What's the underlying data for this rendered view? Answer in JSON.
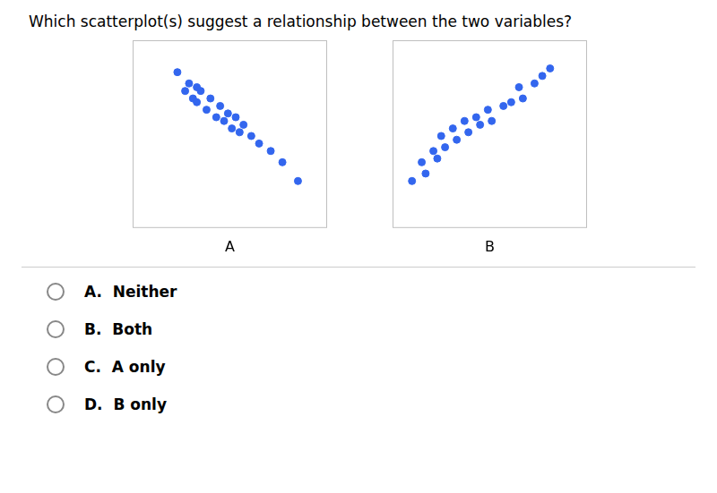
{
  "chart_data": [
    {
      "type": "scatter",
      "title": "Which scatterplot(s) suggest a relationship between the two variables?",
      "xlabel": "A",
      "x": [
        0.18,
        0.24,
        0.22,
        0.28,
        0.26,
        0.3,
        0.28,
        0.35,
        0.33,
        0.4,
        0.38,
        0.44,
        0.42,
        0.48,
        0.46,
        0.52,
        0.5,
        0.56,
        0.6,
        0.66,
        0.72,
        0.8
      ],
      "y": [
        0.78,
        0.72,
        0.68,
        0.7,
        0.64,
        0.68,
        0.62,
        0.64,
        0.58,
        0.6,
        0.54,
        0.56,
        0.52,
        0.54,
        0.48,
        0.5,
        0.46,
        0.44,
        0.4,
        0.36,
        0.3,
        0.2
      ],
      "color": "#3366EE",
      "marker": "circle",
      "xlim": [
        -0.05,
        0.95
      ],
      "ylim": [
        -0.05,
        0.95
      ],
      "xticks": [],
      "yticks": [],
      "tick_labels": false,
      "grid": false,
      "annotations": [
        "A.  Neither",
        "B.  Both",
        "C.  A only",
        "D.  B only"
      ]
    },
    {
      "type": "scatter",
      "xlabel": "B",
      "x": [
        0.05,
        0.12,
        0.1,
        0.18,
        0.16,
        0.22,
        0.2,
        0.28,
        0.26,
        0.34,
        0.32,
        0.4,
        0.38,
        0.46,
        0.44,
        0.52,
        0.56,
        0.62,
        0.6,
        0.68,
        0.72,
        0.76
      ],
      "y": [
        0.2,
        0.24,
        0.3,
        0.32,
        0.36,
        0.38,
        0.44,
        0.42,
        0.48,
        0.46,
        0.52,
        0.5,
        0.54,
        0.52,
        0.58,
        0.6,
        0.62,
        0.64,
        0.7,
        0.72,
        0.76,
        0.8
      ],
      "color": "#3366EE",
      "marker": "circle",
      "xlim": [
        -0.05,
        0.95
      ],
      "ylim": [
        -0.05,
        0.95
      ],
      "xticks": [],
      "yticks": [],
      "tick_labels": false,
      "grid": false
    }
  ]
}
